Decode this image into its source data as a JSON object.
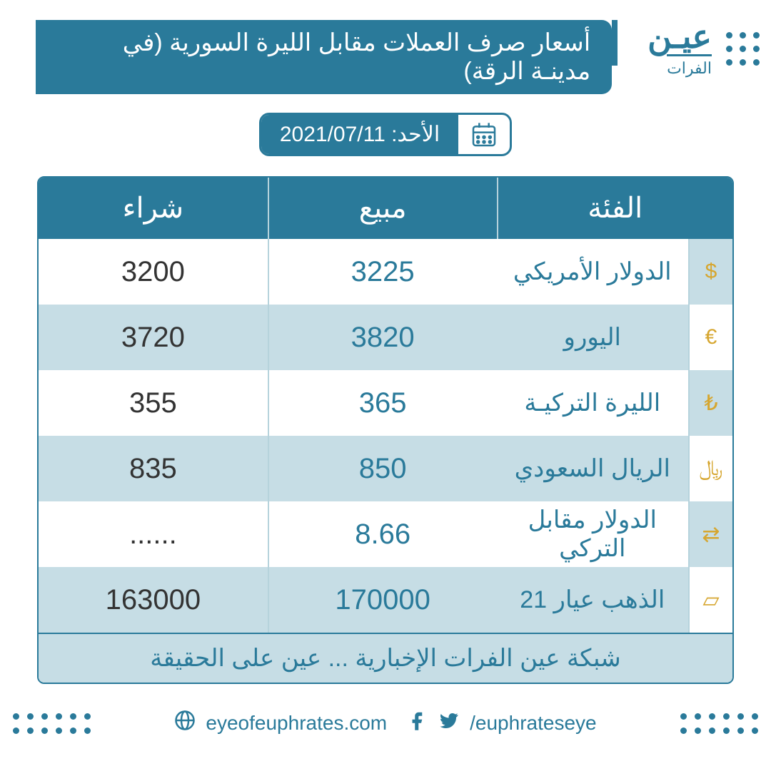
{
  "colors": {
    "primary": "#2a7a9a",
    "shade": "#c6dde5",
    "white": "#ffffff",
    "buy_text": "#333333",
    "icon_gold": "#d6a62f"
  },
  "logo": {
    "main": "عيـن",
    "sub": "الفرات"
  },
  "title": "أسعار صرف العملات مقابل الليرة السورية (في مدينـة الرقة)",
  "date": "الأحد: 2021/07/11",
  "table": {
    "columns": {
      "category": "الفئة",
      "sell": "مبيع",
      "buy": "شراء"
    },
    "footer": "شبكة عين الفرات الإخبارية ... عين على الحقيقة",
    "rows": [
      {
        "icon": "$",
        "label": "الدولار الأمريكي",
        "sell": "3225",
        "buy": "3200"
      },
      {
        "icon": "€",
        "label": "اليورو",
        "sell": "3820",
        "buy": "3720"
      },
      {
        "icon": "₺",
        "label": "الليرة التركيـة",
        "sell": "365",
        "buy": "355"
      },
      {
        "icon": "﷼",
        "label": "الريال السعودي",
        "sell": "850",
        "buy": "835"
      },
      {
        "icon": "⇄",
        "label": "الدولار مقابل التركي",
        "sell": "8.66",
        "buy": "......"
      },
      {
        "icon": "▱",
        "label": "الذهب عيار 21",
        "sell": "170000",
        "buy": "163000"
      }
    ]
  },
  "footer": {
    "website": "eyeofeuphrates.com",
    "handle": "/euphrateseye"
  }
}
